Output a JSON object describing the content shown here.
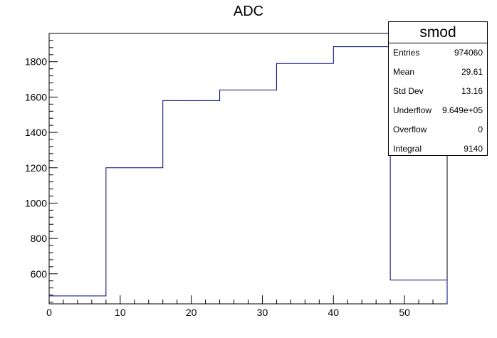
{
  "title": "ADC",
  "chart_data": {
    "type": "histogram",
    "title": "ADC",
    "xlabel": "",
    "ylabel": "",
    "bin_edges": [
      0,
      8,
      16,
      24,
      32,
      40,
      48,
      56
    ],
    "values": [
      475,
      1200,
      1580,
      1640,
      1790,
      1885,
      565
    ],
    "xlim": [
      0,
      56
    ],
    "ylim": [
      430,
      1960
    ],
    "x_ticks": [
      0,
      10,
      20,
      30,
      40,
      50
    ],
    "y_ticks": [
      600,
      800,
      1000,
      1200,
      1400,
      1600,
      1800
    ],
    "line_color": "#000080",
    "grid": false
  },
  "stats": {
    "name": "smod",
    "rows": [
      {
        "label": "Entries",
        "value": "974060"
      },
      {
        "label": "Mean",
        "value": "29.61"
      },
      {
        "label": "Std Dev",
        "value": "13.16"
      },
      {
        "label": "Underflow",
        "value": "9.649e+05"
      },
      {
        "label": "Overflow",
        "value": "0"
      },
      {
        "label": "Integral",
        "value": "9140"
      }
    ]
  }
}
